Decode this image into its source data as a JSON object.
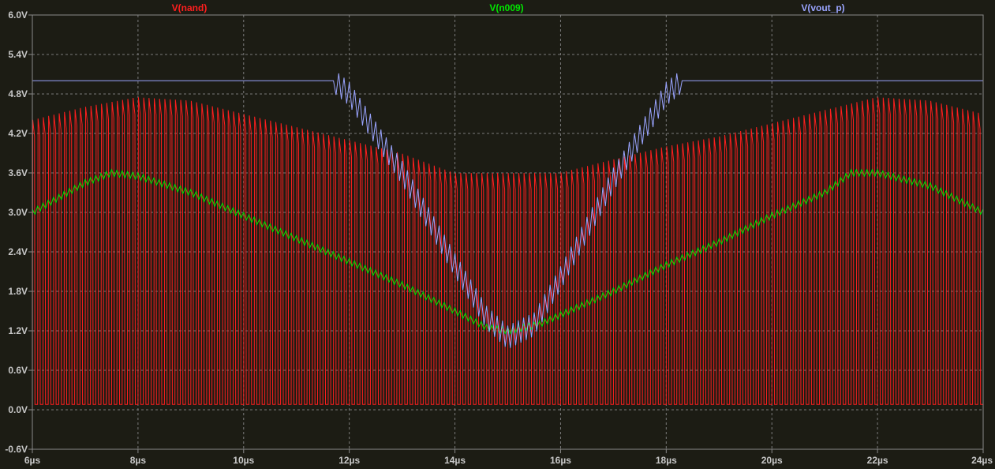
{
  "chart_data": {
    "type": "line",
    "title": "",
    "xlabel": "",
    "ylabel": "",
    "xunit": "µs",
    "xlim": [
      6,
      24
    ],
    "ylim": [
      -0.6,
      6.0
    ],
    "grid": true,
    "legend_position": "top",
    "x_ticks": [
      "6µs",
      "8µs",
      "10µs",
      "12µs",
      "14µs",
      "16µs",
      "18µs",
      "20µs",
      "22µs",
      "24µs"
    ],
    "y_ticks": [
      "-0.6V",
      "0.0V",
      "0.6V",
      "1.2V",
      "1.8V",
      "2.4V",
      "3.0V",
      "3.6V",
      "4.2V",
      "4.8V",
      "5.4V",
      "6.0V"
    ],
    "series": [
      {
        "name": "V(nand)",
        "color": "#ff1e1e",
        "kind": "switching",
        "cycles": 180,
        "low_level": 0.08,
        "high_envelope": {
          "x": [
            6,
            7,
            8,
            9,
            10,
            11,
            12,
            13,
            14,
            15,
            16,
            17,
            18,
            19,
            20,
            21,
            22,
            23,
            24
          ],
          "y": [
            4.4,
            4.6,
            4.75,
            4.7,
            4.5,
            4.3,
            4.1,
            3.9,
            3.6,
            3.6,
            3.6,
            3.8,
            4.0,
            4.15,
            4.35,
            4.55,
            4.75,
            4.7,
            4.5
          ]
        }
      },
      {
        "name": "V(n009)",
        "color": "#00e600",
        "kind": "ripple",
        "ripple_amplitude": 0.05,
        "cycles": 180,
        "x": [
          6,
          7,
          7.5,
          8,
          9,
          10,
          11,
          12,
          13,
          14,
          14.6,
          15,
          15.6,
          17,
          18,
          19,
          20,
          21,
          21.5,
          22,
          23,
          24
        ],
        "y": [
          3.0,
          3.45,
          3.6,
          3.55,
          3.3,
          2.95,
          2.6,
          2.25,
          1.9,
          1.5,
          1.25,
          1.2,
          1.3,
          1.8,
          2.2,
          2.55,
          2.95,
          3.3,
          3.6,
          3.6,
          3.4,
          3.0
        ]
      },
      {
        "name": "V(vout_p)",
        "color": "#9aa4ff",
        "kind": "band",
        "band_amplitude": 0.18,
        "cycles": 180,
        "x": [
          6,
          11.7,
          12,
          13,
          14,
          14.6,
          15,
          15.5,
          16,
          17,
          18,
          18.3,
          24
        ],
        "y": [
          5.0,
          5.0,
          4.8,
          3.6,
          2.2,
          1.4,
          1.1,
          1.3,
          2.0,
          3.5,
          4.8,
          5.0,
          5.0
        ]
      }
    ]
  }
}
